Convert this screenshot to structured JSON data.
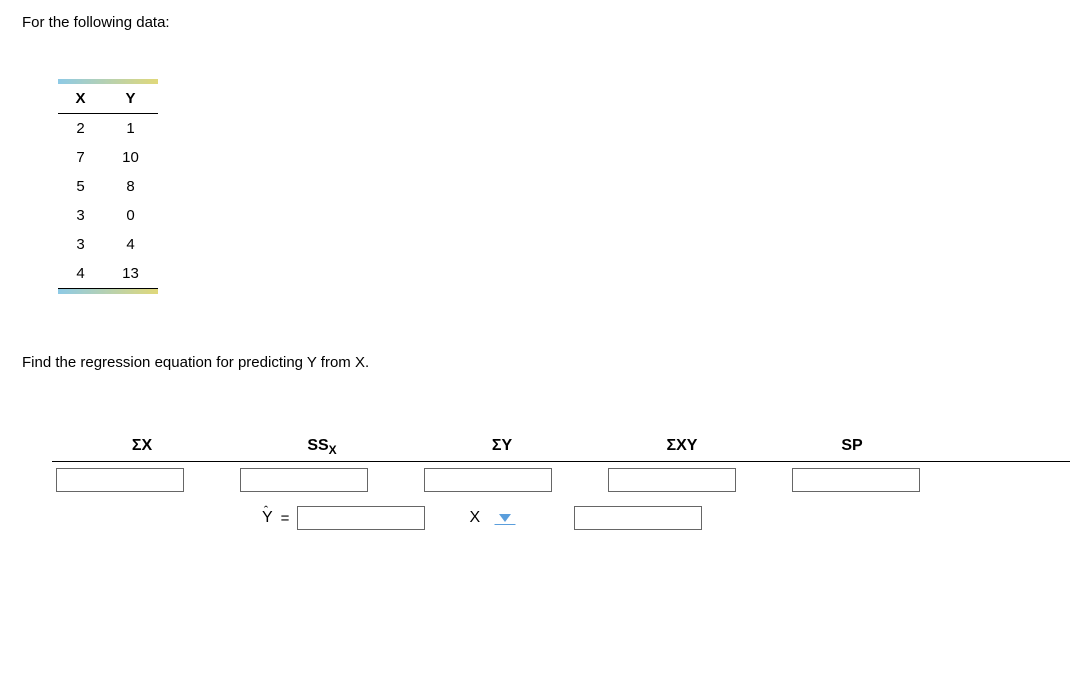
{
  "intro": "For the following data:",
  "data_table": {
    "headers": [
      "X",
      "Y"
    ],
    "rows": [
      [
        "2",
        "1"
      ],
      [
        "7",
        "10"
      ],
      [
        "5",
        "8"
      ],
      [
        "3",
        "0"
      ],
      [
        "3",
        "4"
      ],
      [
        "4",
        "13"
      ]
    ]
  },
  "question": "Find the regression equation for predicting Y from X.",
  "answer_headers": {
    "sx": "ΣX",
    "ssx_main": "SS",
    "ssx_sub": "X",
    "sy": "ΣY",
    "sxy": "ΣXY",
    "sp": "SP"
  },
  "equation": {
    "yhat_letter": "Y",
    "equals": "=",
    "x_label": "X"
  },
  "colors": {
    "border": "#000000",
    "dropdown_accent": "#5a9edc",
    "input_border": "#666666",
    "gradient_left": "#8ecae6",
    "gradient_right": "#e0d87a"
  }
}
